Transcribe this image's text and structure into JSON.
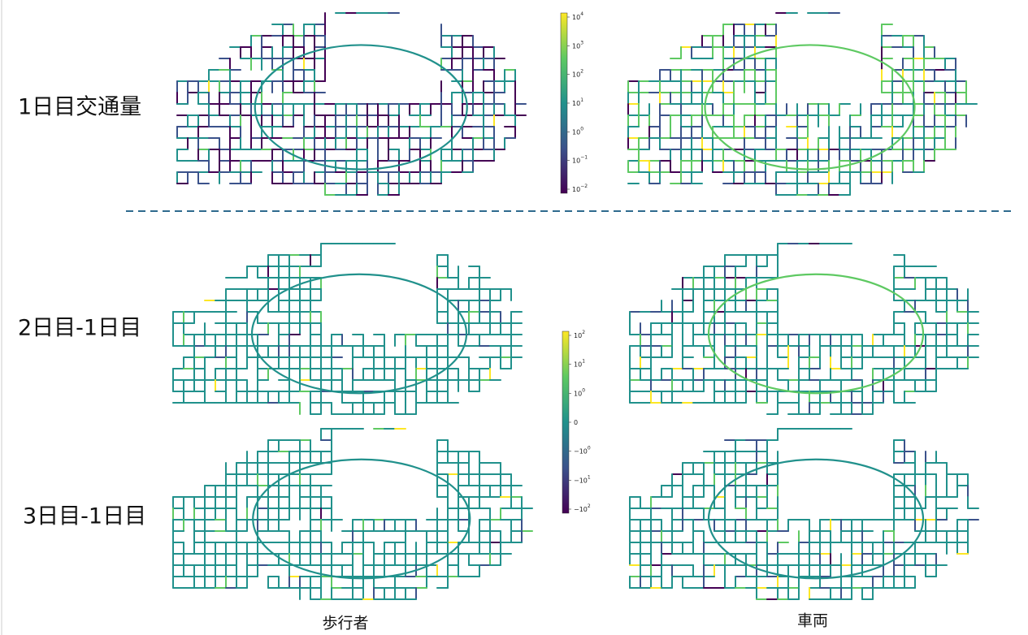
{
  "row_labels": [
    "1日目交通量",
    "2日目-1日目",
    "3日目-1日目"
  ],
  "column_labels": [
    "歩行者",
    "車両"
  ],
  "colorbars": [
    {
      "ticks": [
        {
          "base": "10",
          "exp": "4"
        },
        {
          "base": "10",
          "exp": "3"
        },
        {
          "base": "10",
          "exp": "2"
        },
        {
          "base": "10",
          "exp": "1"
        },
        {
          "base": "10",
          "exp": "0"
        },
        {
          "base": "10",
          "exp": "−1"
        },
        {
          "base": "10",
          "exp": "−2"
        }
      ]
    },
    {
      "ticks": [
        {
          "base": "10",
          "exp": "2"
        },
        {
          "base": "10",
          "exp": "1"
        },
        {
          "base": "10",
          "exp": "0"
        },
        {
          "base": "0"
        },
        {
          "base": "−10",
          "exp": "0"
        },
        {
          "base": "−10",
          "exp": "1"
        },
        {
          "base": "−10",
          "exp": "2"
        }
      ]
    }
  ]
}
